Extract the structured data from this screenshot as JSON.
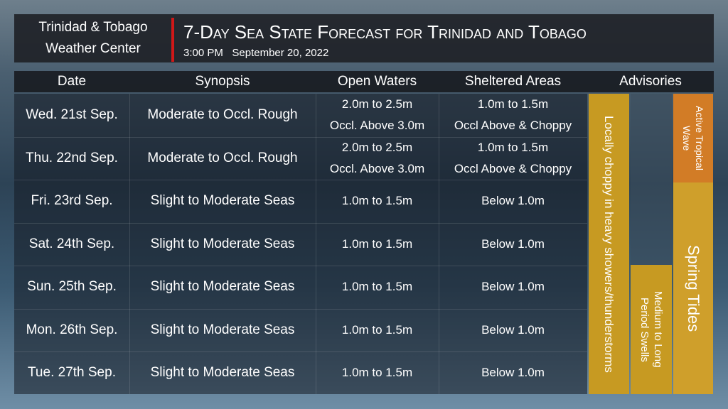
{
  "header": {
    "org_lines": [
      "Trinidad & Tobago",
      "Weather Center"
    ],
    "title": "7-Day Sea State Forecast for Trinidad and Tobago",
    "time": "3:00 PM",
    "date": "September 20, 2022"
  },
  "table": {
    "headers": [
      "Date",
      "Synopsis",
      "Open Waters",
      "Sheltered Areas",
      "Advisories"
    ],
    "rows": [
      [
        "Wed. 21st Sep.",
        "Moderate to Occl. Rough",
        [
          "2.0m to 2.5m",
          "Occl. Above 3.0m"
        ],
        [
          "1.0m to 1.5m",
          "Occl Above & Choppy"
        ]
      ],
      [
        "Thu. 22nd Sep.",
        "Moderate to Occl. Rough",
        [
          "2.0m to 2.5m",
          "Occl. Above 3.0m"
        ],
        [
          "1.0m to 1.5m",
          "Occl Above & Choppy"
        ]
      ],
      [
        "Fri. 23rd Sep.",
        "Slight to Moderate Seas",
        [
          "1.0m to 1.5m"
        ],
        [
          "Below 1.0m"
        ]
      ],
      [
        "Sat. 24th Sep.",
        "Slight to Moderate Seas",
        [
          "1.0m to 1.5m"
        ],
        [
          "Below 1.0m"
        ]
      ],
      [
        "Sun. 25th Sep.",
        "Slight to Moderate Seas",
        [
          "1.0m to 1.5m"
        ],
        [
          "Below 1.0m"
        ]
      ],
      [
        "Mon. 26th Sep.",
        "Slight to Moderate Seas",
        [
          "1.0m to 1.5m"
        ],
        [
          "Below 1.0m"
        ]
      ],
      [
        "Tue. 27th Sep.",
        "Slight to Moderate Seas",
        [
          "1.0m to 1.5m"
        ],
        [
          "Below 1.0m"
        ]
      ]
    ]
  },
  "advisories": [
    {
      "lines": [
        "Locally choppy in heavy showers/thunderstorms"
      ]
    },
    {
      "lines": [
        "Medium to Long",
        "Period Swells"
      ]
    },
    {
      "lines": [
        "Active Tropical",
        "Wave"
      ]
    },
    {
      "lines": [
        "Spring Tides"
      ]
    }
  ]
}
